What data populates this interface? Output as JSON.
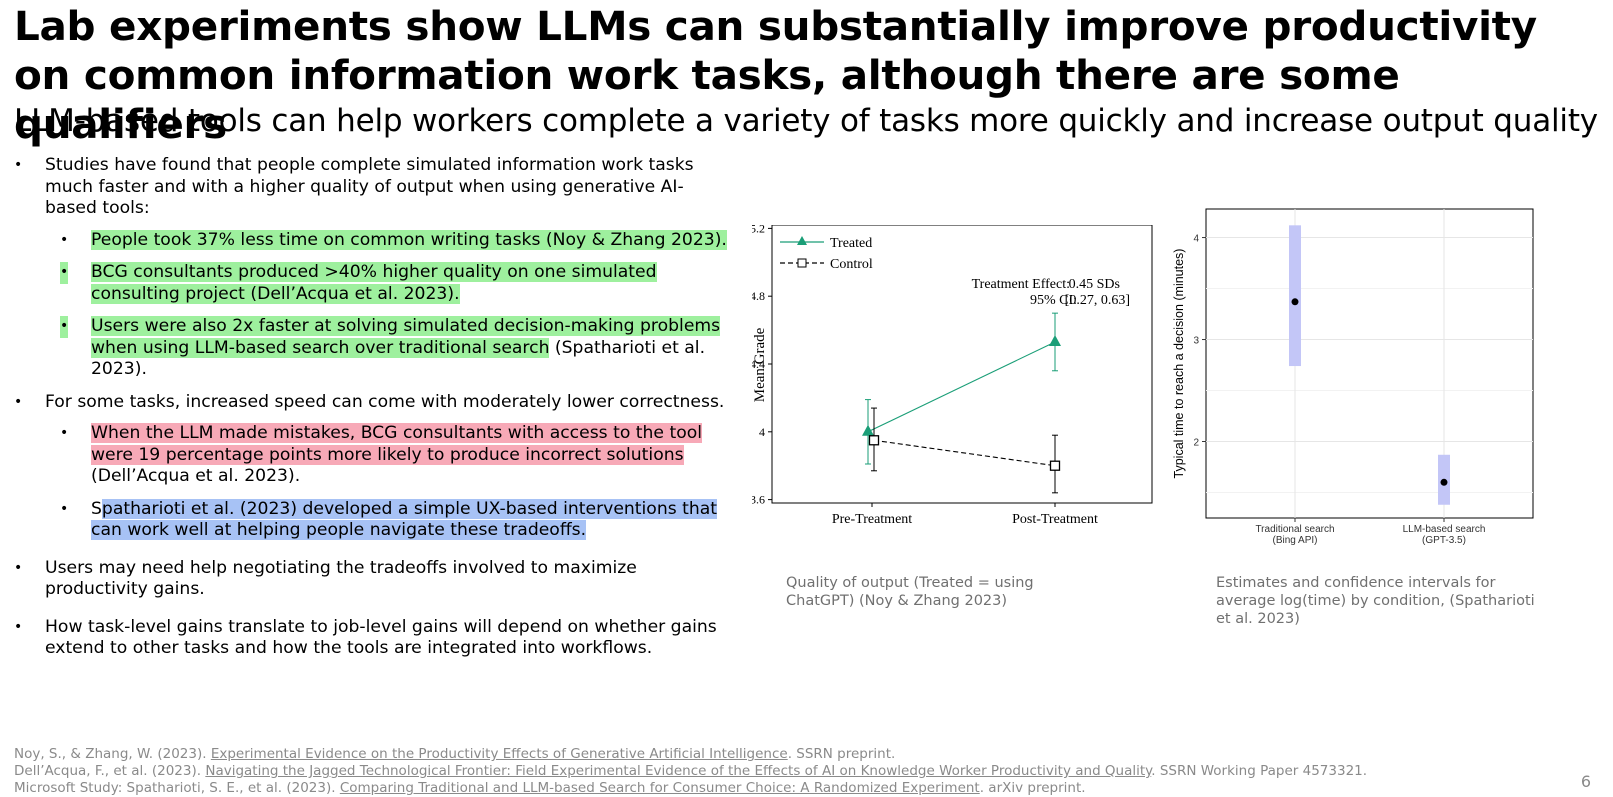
{
  "slide": {
    "title": "Lab experiments show LLMs can substantially improve productivity on common information work tasks, although there are some qualifiers",
    "subtitle": "LLM-based tools can help workers complete a variety of tasks more quickly and increase output quality",
    "page_number": "6"
  },
  "bullets": {
    "b1": "Studies have found that people complete simulated information work tasks much faster and with a higher quality of output when using generative AI-based tools:",
    "b1_1": "People took 37% less time on common writing tasks (Noy & Zhang 2023).",
    "b1_2": "BCG consultants produced >40% higher quality on one simulated consulting project (Dell’Acqua et al. 2023).",
    "b1_3a": "Users were also 2x faster at solving simulated decision-making problems when using LLM-based search over traditional search",
    "b1_3b": " (Spatharioti et al. 2023).",
    "b2": "For some tasks, increased speed can come with moderately lower correctness.",
    "b2_1a": "When the LLM made mistakes, BCG consultants with access to the tool were 19 percentage points more likely to produce incorrect solutions",
    "b2_1b": " (Dell’Acqua et al. 2023).",
    "b2_2a": "S",
    "b2_2b": "patharioti et al. (2023) developed a simple UX-based interventions that can work well at helping people navigate these tradeoffs.",
    "b3": "Users may need help negotiating the tradeoffs involved to maximize productivity gains.",
    "b4": "How task-level gains translate to job-level gains will depend on whether gains extend to other tasks and how the tools are integrated into workflows."
  },
  "captions": {
    "chart1": "Quality of output (Treated = using ChatGPT) (Noy & Zhang 2023)",
    "chart2": "Estimates and confidence intervals for average log(time) by condition, (Spatharioti et al. 2023)"
  },
  "references": {
    "r1_a": "Noy, S., & Zhang, W. (2023). ",
    "r1_b": "Experimental Evidence on the Productivity Effects of Generative Artificial Intelligence",
    "r1_c": ". SSRN preprint.",
    "r2_a": "Dell’Acqua, F., et al. (2023). ",
    "r2_b": "Navigating the Jagged Technological Frontier: Field Experimental Evidence of the Effects of AI on Knowledge Worker Productivity and Quality",
    "r2_c": ". SSRN Working Paper 4573321.",
    "r3_a": "Microsoft Study: Spatharioti, S. E., et al. (2023). ",
    "r3_b": "Comparing Traditional and LLM-based Search for Consumer Choice: A Randomized Experiment",
    "r3_c": ". arXiv preprint."
  },
  "chart_data": [
    {
      "type": "line",
      "ylabel": "Mean Grade",
      "xlabel": "",
      "categories": [
        "Pre-Treatment",
        "Post-Treatment"
      ],
      "ylim": [
        3.58,
        5.22
      ],
      "yticks": [
        "3.6",
        "4",
        "4.4",
        "4.8",
        "5.2"
      ],
      "ytick_values": [
        3.6,
        4.0,
        4.4,
        4.8,
        5.2
      ],
      "legend_position": "top-left",
      "annotation_line1_label": "Treatment Effect:",
      "annotation_line1_value": "0.45 SDs",
      "annotation_line2_label": "95% CI:",
      "annotation_line2_value": "[0.27, 0.63]",
      "series": [
        {
          "name": "Treated",
          "color": "#1a9e77",
          "marker": "triangle",
          "values": [
            4.0,
            4.53
          ],
          "lower": [
            3.81,
            4.36
          ],
          "upper": [
            4.19,
            4.7
          ]
        },
        {
          "name": "Control",
          "color": "#000000",
          "marker": "square",
          "values": [
            3.95,
            3.8
          ],
          "lower": [
            3.77,
            3.64
          ],
          "upper": [
            4.14,
            3.98
          ]
        }
      ]
    },
    {
      "type": "scatter",
      "ylabel": "Typical time to reach a decision (minutes)",
      "categories": [
        "Traditional search\n(Bing API)",
        "LLM-based search\n(GPT-3.5)"
      ],
      "ylim": [
        1.25,
        4.28
      ],
      "yticks": [
        "2",
        "3",
        "4"
      ],
      "ytick_values": [
        2,
        3,
        4
      ],
      "grid": true,
      "values": [
        3.37,
        1.6
      ],
      "lower": [
        2.74,
        1.38
      ],
      "upper": [
        4.12,
        1.87
      ],
      "point_color": "#000000",
      "interval_color": "#c3c6f7"
    }
  ]
}
